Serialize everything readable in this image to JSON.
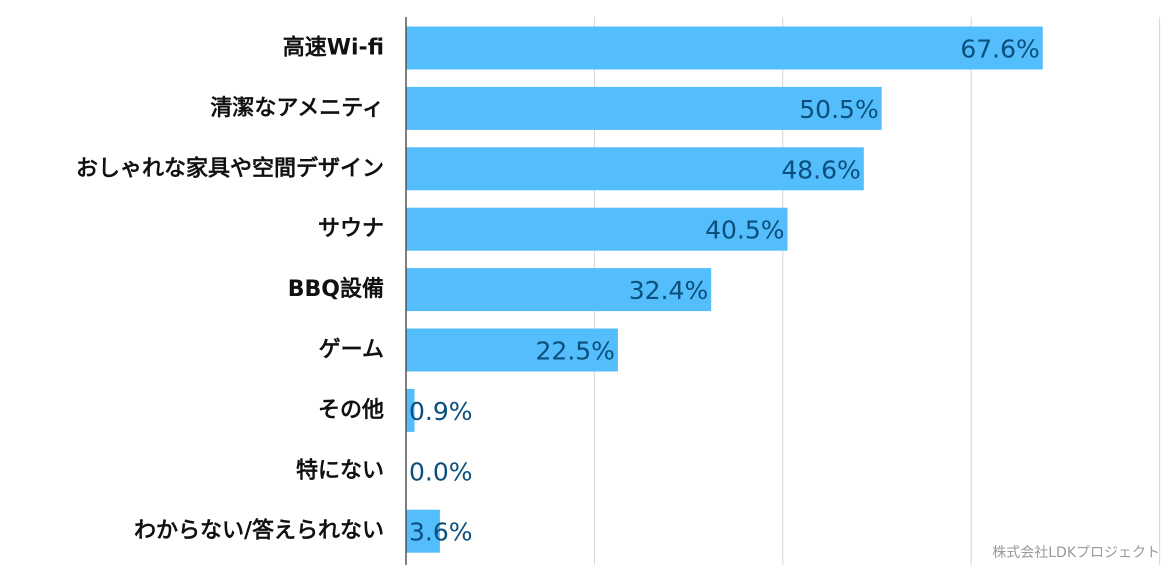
{
  "chart_data": {
    "type": "bar",
    "orientation": "horizontal",
    "categories": [
      "高速Wi-fi",
      "清潔なアメニティ",
      "おしゃれな家具や空間デザイン",
      "サウナ",
      "BBQ設備",
      "ゲーム",
      "その他",
      "特にない",
      "わからない/答えられない"
    ],
    "values": [
      67.6,
      50.5,
      48.6,
      40.5,
      32.4,
      22.5,
      0.9,
      0.0,
      3.6
    ],
    "value_labels": [
      "67.6%",
      "50.5%",
      "48.6%",
      "40.5%",
      "32.4%",
      "22.5%",
      "0.9%",
      "0.0%",
      "3.6%"
    ],
    "title": "",
    "xlabel": "",
    "ylabel": "",
    "xlim": [
      0,
      80
    ],
    "grid": true,
    "legend": "none",
    "bar_color": "#54bdfb",
    "value_label_color": "#0b4f7c"
  },
  "credit": "株式会社LDKプロジェクト"
}
